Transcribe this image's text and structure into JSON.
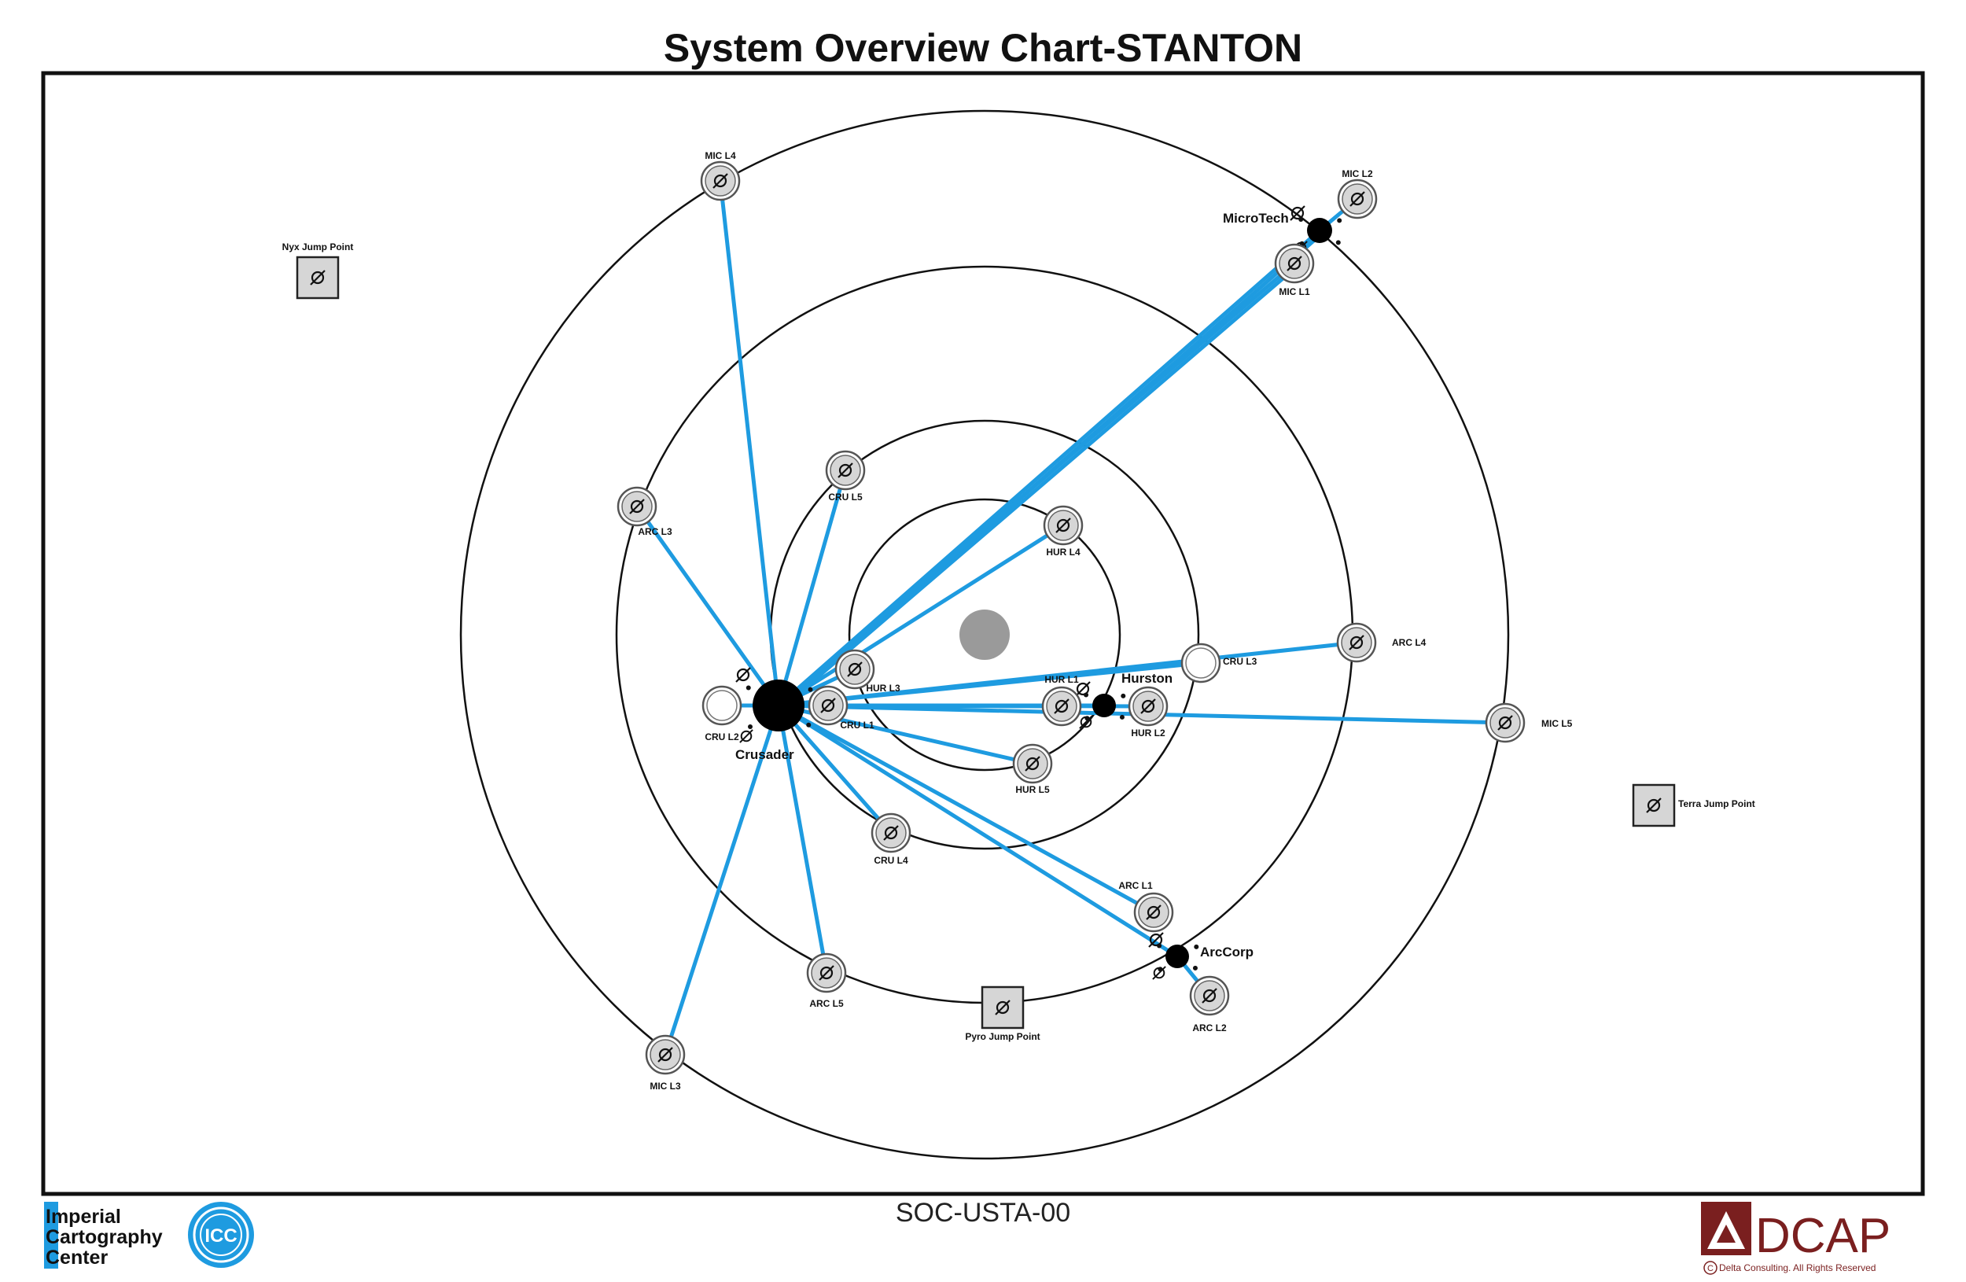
{
  "title": "System Overview Chart-STANTON",
  "chart_code": "SOC-USTA-00",
  "footer": {
    "icc_lines": [
      "Imperial",
      "Cartography",
      "Center"
    ],
    "icc_seal_text": "ICC",
    "dcap_text": "DCAP",
    "copyright": "Delta Consulting.  All Rights Reserved"
  },
  "colors": {
    "route": "#1e9be0",
    "orbit": "#111111",
    "star": "#9a9a9a",
    "planet": "#000000",
    "marker_fill": "#d6d6d6",
    "dcap": "#7a1f1f",
    "icc_blue": "#1e9be0"
  },
  "planets": [
    {
      "id": "crusader",
      "label": "Crusader"
    },
    {
      "id": "hurston",
      "label": "Hurston"
    },
    {
      "id": "arccorp",
      "label": "ArcCorp"
    },
    {
      "id": "microtech",
      "label": "MicroTech"
    }
  ],
  "lagrange_points": [
    {
      "id": "mic-l4",
      "label": "MIC L4"
    },
    {
      "id": "mic-l2",
      "label": "MIC L2"
    },
    {
      "id": "mic-l1",
      "label": "MIC L1"
    },
    {
      "id": "mic-l5",
      "label": "MIC L5"
    },
    {
      "id": "mic-l3",
      "label": "MIC L3"
    },
    {
      "id": "arc-l3",
      "label": "ARC L3"
    },
    {
      "id": "arc-l4",
      "label": "ARC L4"
    },
    {
      "id": "arc-l1",
      "label": "ARC L1"
    },
    {
      "id": "arc-l2",
      "label": "ARC L2"
    },
    {
      "id": "arc-l5",
      "label": "ARC L5"
    },
    {
      "id": "cru-l5",
      "label": "CRU L5"
    },
    {
      "id": "cru-l3",
      "label": "CRU L3"
    },
    {
      "id": "cru-l2",
      "label": "CRU L2"
    },
    {
      "id": "cru-l1",
      "label": "CRU L1"
    },
    {
      "id": "cru-l4",
      "label": "CRU L4"
    },
    {
      "id": "hur-l4",
      "label": "HUR L4"
    },
    {
      "id": "hur-l3",
      "label": "HUR L3"
    },
    {
      "id": "hur-l1",
      "label": "HUR L1"
    },
    {
      "id": "hur-l2",
      "label": "HUR L2"
    },
    {
      "id": "hur-l5",
      "label": "HUR L5"
    }
  ],
  "jump_points": [
    {
      "id": "nyx",
      "label": "Nyx Jump Point"
    },
    {
      "id": "terra",
      "label": "Terra Jump Point"
    },
    {
      "id": "pyro",
      "label": "Pyro Jump Point"
    }
  ],
  "routes": [
    {
      "from": "crusader",
      "to": "mic-l4"
    },
    {
      "from": "crusader",
      "to": "arc-l3"
    },
    {
      "from": "crusader",
      "to": "cru-l5"
    },
    {
      "from": "crusader",
      "to": "microtech"
    },
    {
      "from": "crusader",
      "to": "mic-l1"
    },
    {
      "from": "crusader",
      "to": "hur-l4"
    },
    {
      "from": "crusader",
      "to": "arc-l4"
    },
    {
      "from": "crusader",
      "to": "cru-l3"
    },
    {
      "from": "crusader",
      "to": "hur-l1"
    },
    {
      "from": "crusader",
      "to": "hurston"
    },
    {
      "from": "crusader",
      "to": "hur-l2"
    },
    {
      "from": "crusader",
      "to": "mic-l5"
    },
    {
      "from": "crusader",
      "to": "hur-l5"
    },
    {
      "from": "crusader",
      "to": "cru-l4"
    },
    {
      "from": "crusader",
      "to": "arc-l1"
    },
    {
      "from": "crusader",
      "to": "arccorp"
    },
    {
      "from": "crusader",
      "to": "arc-l5"
    },
    {
      "from": "crusader",
      "to": "mic-l3"
    },
    {
      "from": "crusader",
      "to": "cru-l2"
    },
    {
      "from": "crusader",
      "to": "hur-l3"
    },
    {
      "from": "arccorp",
      "to": "arc-l2"
    },
    {
      "from": "microtech",
      "to": "mic-l2"
    }
  ]
}
